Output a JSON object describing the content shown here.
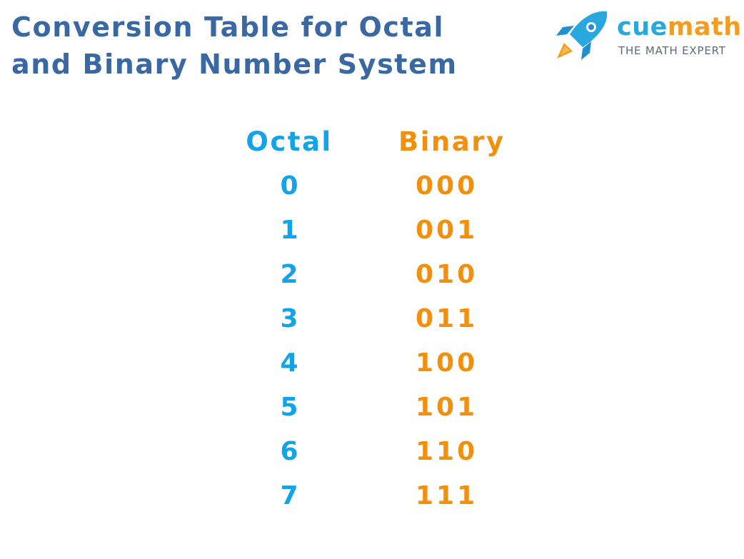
{
  "title": {
    "line1": "Conversion Table for Octal",
    "line2": "and Binary Number System"
  },
  "logo": {
    "icon": "rocket-icon",
    "brand_part1": "cue",
    "brand_part2": "math",
    "tagline": "THE MATH EXPERT",
    "colors": {
      "cue": "#29a8df",
      "math": "#f39c1f"
    }
  },
  "table": {
    "headers": {
      "octal": "Octal",
      "binary": "Binary"
    },
    "rows": [
      {
        "octal": "0",
        "binary": "000"
      },
      {
        "octal": "1",
        "binary": "001"
      },
      {
        "octal": "2",
        "binary": "010"
      },
      {
        "octal": "3",
        "binary": "011"
      },
      {
        "octal": "4",
        "binary": "100"
      },
      {
        "octal": "5",
        "binary": "101"
      },
      {
        "octal": "6",
        "binary": "110"
      },
      {
        "octal": "7",
        "binary": "111"
      }
    ]
  },
  "colors": {
    "title": "#3a68a2",
    "octal": "#12a3e8",
    "binary": "#f0900e"
  }
}
